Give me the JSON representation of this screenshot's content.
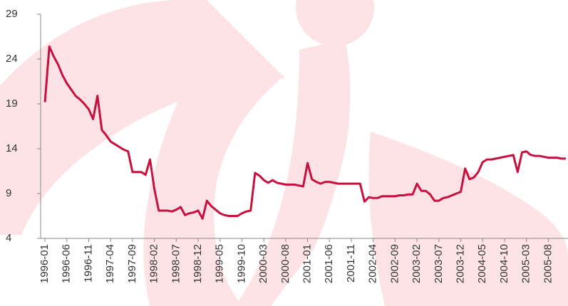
{
  "chart_data": {
    "type": "line",
    "categories": [
      "1996-01",
      null,
      null,
      null,
      null,
      "1996-06",
      null,
      null,
      null,
      null,
      "1996-11",
      null,
      null,
      null,
      null,
      "1997-04",
      null,
      null,
      null,
      null,
      "1997-09",
      null,
      null,
      null,
      null,
      "1998-02",
      null,
      null,
      null,
      null,
      "1998-07",
      null,
      null,
      null,
      null,
      "1998-12",
      null,
      null,
      null,
      null,
      "1999-05",
      null,
      null,
      null,
      null,
      "1999-10",
      null,
      null,
      null,
      null,
      "2000-03",
      null,
      null,
      null,
      null,
      "2000-08",
      null,
      null,
      null,
      null,
      "2001-01",
      null,
      null,
      null,
      null,
      "2001-06",
      null,
      null,
      null,
      null,
      "2001-11",
      null,
      null,
      null,
      null,
      "2002-04",
      null,
      null,
      null,
      null,
      "2002-09",
      null,
      null,
      null,
      null,
      "2003-02",
      null,
      null,
      null,
      null,
      "2003-07",
      null,
      null,
      null,
      null,
      "2003-12",
      null,
      null,
      null,
      null,
      "2004-05",
      null,
      null,
      null,
      null,
      "2004-10",
      null,
      null,
      null,
      null,
      "2005-03",
      null,
      null,
      null,
      null,
      "2005-08",
      null,
      null,
      null,
      null
    ],
    "values": [
      19.2,
      25.4,
      24.3,
      23.4,
      22.2,
      21.3,
      20.6,
      19.9,
      19.5,
      19.0,
      18.4,
      17.3,
      19.9,
      16.1,
      15.5,
      14.8,
      14.5,
      14.2,
      13.9,
      13.7,
      11.4,
      11.4,
      11.4,
      11.1,
      12.8,
      9.5,
      7.1,
      7.1,
      7.1,
      7.0,
      7.2,
      7.5,
      6.6,
      6.8,
      6.9,
      7.1,
      6.2,
      8.2,
      7.6,
      7.2,
      6.8,
      6.6,
      6.5,
      6.5,
      6.5,
      6.8,
      7.0,
      7.1,
      11.3,
      11.0,
      10.5,
      10.2,
      10.5,
      10.2,
      10.1,
      10.0,
      10.0,
      10.0,
      9.9,
      9.8,
      12.4,
      10.6,
      10.3,
      10.1,
      10.3,
      10.3,
      10.2,
      10.1,
      10.1,
      10.1,
      10.1,
      10.1,
      10.1,
      8.1,
      8.6,
      8.5,
      8.5,
      8.7,
      8.7,
      8.7,
      8.7,
      8.8,
      8.8,
      8.9,
      8.9,
      10.1,
      9.3,
      9.3,
      8.9,
      8.2,
      8.2,
      8.5,
      8.6,
      8.8,
      9.0,
      9.2,
      11.8,
      10.6,
      10.8,
      11.4,
      12.5,
      12.8,
      12.8,
      12.9,
      13.0,
      13.1,
      13.2,
      13.3,
      11.4,
      13.6,
      13.7,
      13.3,
      13.2,
      13.2,
      13.1,
      13.0,
      13.0,
      13.0,
      12.9,
      12.9
    ],
    "color": "#c8103e",
    "ylim": [
      4,
      29
    ],
    "yticks": [
      4,
      9,
      14,
      19,
      24,
      29
    ]
  }
}
